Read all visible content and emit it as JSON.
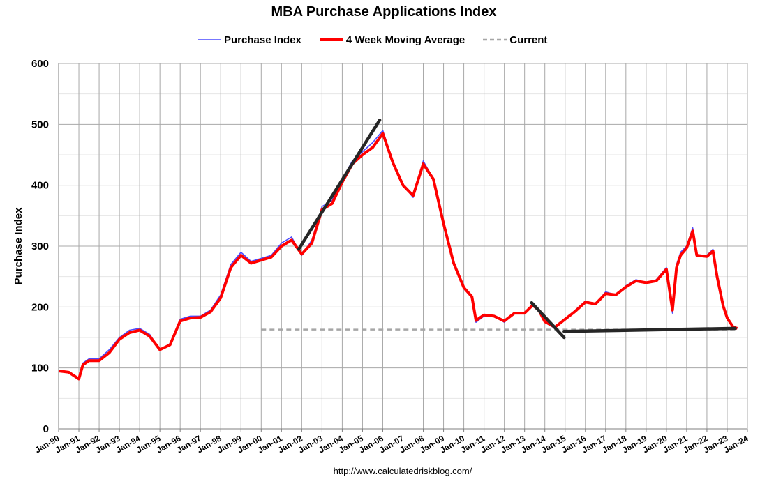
{
  "chart_data": {
    "type": "line",
    "title": "MBA Purchase Applications Index",
    "ylabel": "Purchase Index",
    "xlabel": "",
    "ylim": [
      0,
      600
    ],
    "yticks": [
      "0",
      "100",
      "200",
      "300",
      "400",
      "500",
      "600"
    ],
    "xlim": [
      1990,
      2024
    ],
    "xticks": [
      "Jan-90",
      "Jan-91",
      "Jan-92",
      "Jan-93",
      "Jan-94",
      "Jan-95",
      "Jan-96",
      "Jan-97",
      "Jan-98",
      "Jan-99",
      "Jan-00",
      "Jan-01",
      "Jan-02",
      "Jan-03",
      "Jan-04",
      "Jan-05",
      "Jan-06",
      "Jan-07",
      "Jan-08",
      "Jan-09",
      "Jan-10",
      "Jan-11",
      "Jan-12",
      "Jan-13",
      "Jan-14",
      "Jan-15",
      "Jan-16",
      "Jan-17",
      "Jan-18",
      "Jan-19",
      "Jan-20",
      "Jan-21",
      "Jan-22",
      "Jan-23",
      "Jan-24"
    ],
    "grid": true,
    "legend_position": "top",
    "source": "http://www.calculatedriskblog.com/",
    "colors": {
      "index": "#4a4aff",
      "average": "#ff0000",
      "current": "#a6a6a6",
      "trend": "#262626"
    },
    "series": [
      {
        "name": "Purchase Index",
        "style": "thin-line",
        "x": [
          1990.0,
          1990.5,
          1991.0,
          1991.2,
          1991.5,
          1992.0,
          1992.5,
          1993.0,
          1993.5,
          1994.0,
          1994.5,
          1995.0,
          1995.5,
          1996.0,
          1996.5,
          1997.0,
          1997.5,
          1998.0,
          1998.5,
          1999.0,
          1999.5,
          2000.0,
          2000.5,
          2001.0,
          2001.5,
          2002.0,
          2002.5,
          2003.0,
          2003.5,
          2004.0,
          2004.5,
          2005.0,
          2005.5,
          2006.0,
          2006.5,
          2007.0,
          2007.5,
          2008.0,
          2008.5,
          2009.0,
          2009.5,
          2010.0,
          2010.4,
          2010.6,
          2011.0,
          2011.5,
          2012.0,
          2012.5,
          2013.0,
          2013.4,
          2013.7,
          2014.0,
          2014.5,
          2015.0,
          2015.5,
          2016.0,
          2016.5,
          2017.0,
          2017.5,
          2018.0,
          2018.5,
          2019.0,
          2019.5,
          2020.0,
          2020.3,
          2020.5,
          2020.7,
          2021.0,
          2021.3,
          2021.5,
          2022.0,
          2022.3,
          2022.5,
          2022.8,
          2023.0,
          2023.3,
          2023.5
        ],
        "y": [
          95,
          93,
          82,
          108,
          115,
          115,
          130,
          150,
          162,
          165,
          155,
          130,
          140,
          180,
          185,
          185,
          195,
          220,
          270,
          290,
          275,
          280,
          285,
          305,
          315,
          285,
          310,
          365,
          375,
          410,
          440,
          455,
          470,
          490,
          440,
          400,
          380,
          440,
          410,
          340,
          270,
          230,
          215,
          175,
          185,
          185,
          175,
          190,
          190,
          205,
          195,
          175,
          165,
          180,
          195,
          210,
          205,
          225,
          220,
          235,
          245,
          240,
          245,
          265,
          190,
          270,
          290,
          300,
          330,
          285,
          285,
          295,
          250,
          200,
          180,
          165,
          165
        ]
      },
      {
        "name": "4 Week Moving Average",
        "style": "thick-line",
        "x": [
          1990.0,
          1990.5,
          1991.0,
          1991.2,
          1991.5,
          1992.0,
          1992.5,
          1993.0,
          1993.5,
          1994.0,
          1994.5,
          1995.0,
          1995.5,
          1996.0,
          1996.5,
          1997.0,
          1997.5,
          1998.0,
          1998.5,
          1999.0,
          1999.5,
          2000.0,
          2000.5,
          2001.0,
          2001.5,
          2002.0,
          2002.5,
          2003.0,
          2003.5,
          2004.0,
          2004.5,
          2005.0,
          2005.5,
          2006.0,
          2006.5,
          2007.0,
          2007.5,
          2008.0,
          2008.5,
          2009.0,
          2009.5,
          2010.0,
          2010.4,
          2010.6,
          2011.0,
          2011.5,
          2012.0,
          2012.5,
          2013.0,
          2013.4,
          2013.7,
          2014.0,
          2014.5,
          2015.0,
          2015.5,
          2016.0,
          2016.5,
          2017.0,
          2017.5,
          2018.0,
          2018.5,
          2019.0,
          2019.5,
          2020.0,
          2020.3,
          2020.5,
          2020.7,
          2021.0,
          2021.3,
          2021.5,
          2022.0,
          2022.3,
          2022.5,
          2022.8,
          2023.0,
          2023.3,
          2023.5
        ],
        "y": [
          95,
          93,
          82,
          105,
          112,
          112,
          125,
          147,
          158,
          162,
          152,
          130,
          138,
          177,
          182,
          183,
          192,
          215,
          265,
          285,
          272,
          277,
          282,
          300,
          310,
          287,
          305,
          360,
          370,
          405,
          435,
          450,
          462,
          485,
          437,
          400,
          383,
          435,
          410,
          337,
          272,
          232,
          217,
          178,
          187,
          185,
          177,
          190,
          190,
          203,
          195,
          176,
          167,
          180,
          193,
          208,
          205,
          222,
          220,
          233,
          243,
          240,
          243,
          262,
          195,
          265,
          285,
          297,
          325,
          285,
          283,
          292,
          250,
          202,
          182,
          167,
          165
        ]
      },
      {
        "name": "Current",
        "style": "dashed",
        "x": [
          2000.0,
          2023.5
        ],
        "y": [
          163,
          163
        ]
      },
      {
        "name": "",
        "style": "trend-line",
        "x": [
          2001.85,
          2005.85
        ],
        "y": [
          295,
          507
        ]
      },
      {
        "name": "",
        "style": "trend-line",
        "x": [
          2013.35,
          2014.95
        ],
        "y": [
          207,
          150
        ]
      },
      {
        "name": "",
        "style": "trend-line",
        "x": [
          2014.95,
          2023.4
        ],
        "y": [
          160,
          165
        ]
      }
    ]
  },
  "legend": {
    "items": [
      {
        "label": "Purchase Index",
        "key": "index"
      },
      {
        "label": "4 Week Moving Average",
        "key": "average"
      },
      {
        "label": "Current",
        "key": "current"
      }
    ]
  }
}
